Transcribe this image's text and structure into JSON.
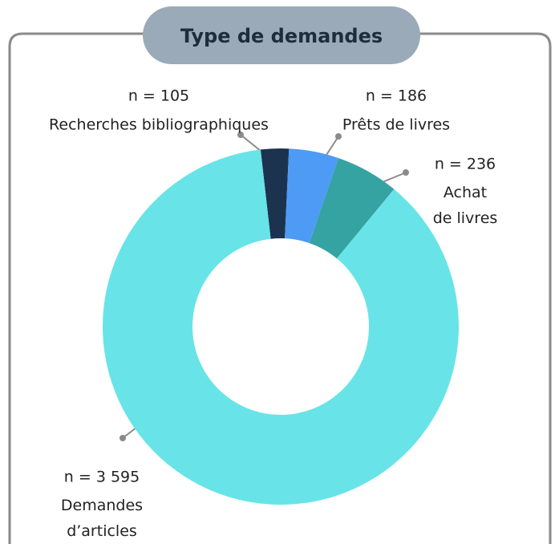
{
  "chart_data": {
    "type": "donut",
    "title": "Type de demandes",
    "categories": [
      "Recherches bibliographiques",
      "Prêts de livres",
      "Achat de livres",
      "Demandes d’articles"
    ],
    "values": [
      105,
      186,
      236,
      3595
    ],
    "value_labels": [
      "n = 105",
      "n = 186",
      "n = 236",
      "n = 3 595"
    ],
    "colors": [
      "#1c3350",
      "#4d9bf5",
      "#36a3a3",
      "#68e4e8"
    ]
  }
}
